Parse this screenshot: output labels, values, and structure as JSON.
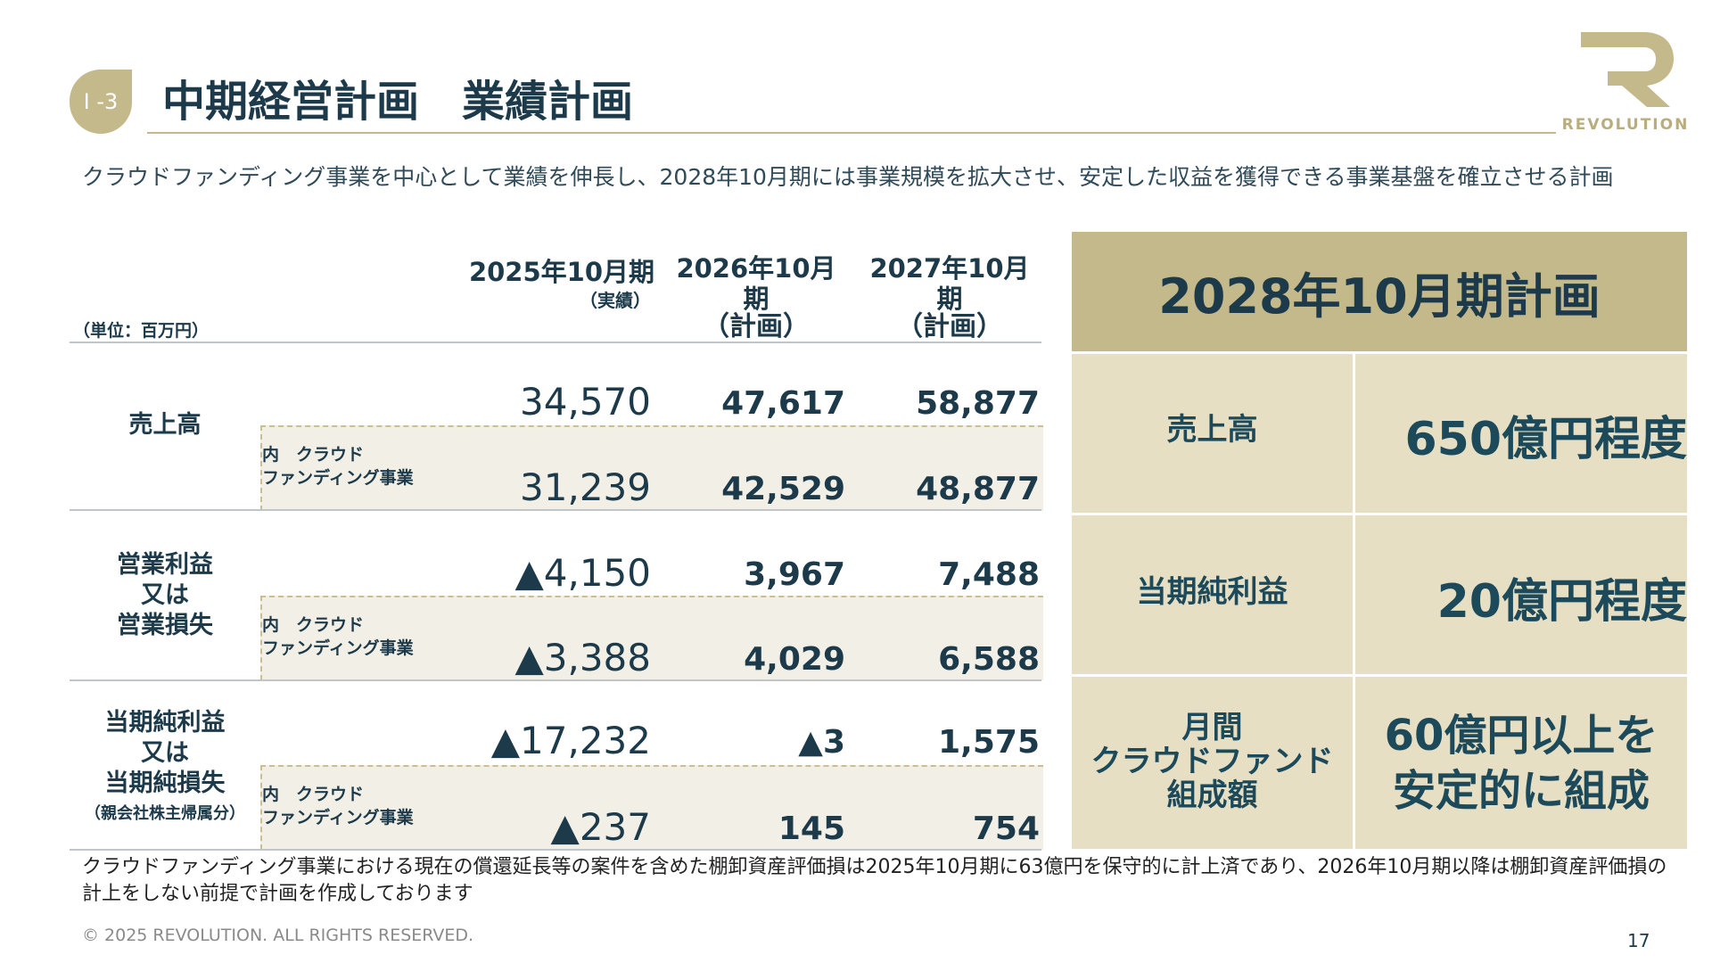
{
  "header": {
    "section_badge": "I -3",
    "title": "中期経営計画　業績計画",
    "logo_text": "REVOLUTION",
    "logo_icon": "revolution-r-logo"
  },
  "intro": "クラウドファンディング事業を中心として業績を伸長し、2028年10月期には事業規模を拡大させ、安定した収益を獲得できる事業基盤を確立させる計画",
  "table": {
    "unit": "（単位：百万円）",
    "columns": [
      {
        "year": "2025年10月期",
        "status": "（実績）"
      },
      {
        "year": "2026年10月期",
        "status": "（計画）"
      },
      {
        "year": "2027年10月期",
        "status": "（計画）"
      }
    ],
    "sub_label": "内　クラウド\nファンディング事業",
    "rows": [
      {
        "label_lines": [
          "売上高"
        ],
        "note": "",
        "values": [
          "34,570",
          "47,617",
          "58,877"
        ],
        "sub_values": [
          "31,239",
          "42,529",
          "48,877"
        ]
      },
      {
        "label_lines": [
          "営業利益",
          "又は",
          "営業損失"
        ],
        "note": "",
        "values": [
          "▲4,150",
          "3,967",
          "7,488"
        ],
        "sub_values": [
          "▲3,388",
          "4,029",
          "6,588"
        ]
      },
      {
        "label_lines": [
          "当期純利益",
          "又は",
          "当期純損失"
        ],
        "note": "（親会社株主帰属分）",
        "values": [
          "▲17,232",
          "▲3",
          "1,575"
        ],
        "sub_values": [
          "▲237",
          "145",
          "754"
        ]
      }
    ]
  },
  "plan_panel": {
    "title": "2028年10月期計画",
    "items": [
      {
        "label": "売上高",
        "value": "650億円程度"
      },
      {
        "label": "当期純利益",
        "value": "20億円程度"
      },
      {
        "label_lines": [
          "月間",
          "クラウドファンド",
          "組成額"
        ],
        "value_lines": [
          "60億円以上を",
          "安定的に組成"
        ]
      }
    ]
  },
  "footnote": "クラウドファンディング事業における現在の償還延長等の案件を含めた棚卸資産評価損は2025年10月期に63億円を保守的に計上済であり、2026年10月期以降は棚卸資産評価損の計上をしない前提で計画を作成しております",
  "footer": {
    "copyright": "© 2025 REVOLUTION. ALL RIGHTS RESERVED.",
    "page_number": "17"
  },
  "colors": {
    "navy": "#1d3a4a",
    "gold": "#c4b98a",
    "panel_bg": "#e6dfc4",
    "sub_row_bg": "#f1efe6"
  }
}
